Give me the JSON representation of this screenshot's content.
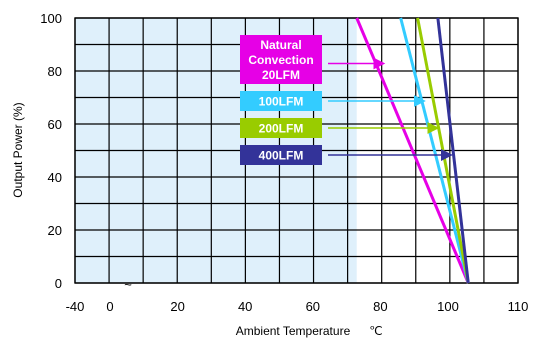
{
  "chart_data": {
    "type": "line",
    "xlabel": "Ambient Temperature",
    "xunit": "℃",
    "ylabel": "Output Power (%)",
    "x_ticks": [
      -40,
      0,
      20,
      40,
      60,
      80,
      100,
      110
    ],
    "y_ticks": [
      0,
      20,
      40,
      60,
      80,
      100
    ],
    "xlim": [
      -40,
      110
    ],
    "ylim": [
      0,
      100
    ],
    "axis_break_symbol": "~",
    "grid": true,
    "shaded_region": {
      "x": [
        -40,
        73
      ],
      "color": "#dff0fb"
    },
    "series": [
      {
        "name": "Natural Convection 20LFM",
        "color": "#e600e6",
        "points": [
          [
            73,
            100
          ],
          [
            106,
            0
          ]
        ],
        "arrow_target": [
          81,
          83
        ]
      },
      {
        "name": "100LFM",
        "color": "#33ccff",
        "points": [
          [
            86,
            100
          ],
          [
            106,
            0
          ]
        ],
        "arrow_target": [
          93,
          69
        ]
      },
      {
        "name": "200LFM",
        "color": "#99cc00",
        "points": [
          [
            91,
            100
          ],
          [
            106,
            0
          ]
        ],
        "arrow_target": [
          97,
          59
        ]
      },
      {
        "name": "400LFM",
        "color": "#333399",
        "points": [
          [
            97,
            100
          ],
          [
            106,
            0
          ]
        ],
        "arrow_target": [
          101,
          49
        ]
      }
    ],
    "legend": [
      {
        "lines": [
          "Natural",
          "Convection",
          "20LFM"
        ],
        "bg": "#e600e6"
      },
      {
        "lines": [
          "100LFM"
        ],
        "bg": "#33ccff"
      },
      {
        "lines": [
          "200LFM"
        ],
        "bg": "#99cc00"
      },
      {
        "lines": [
          "400LFM"
        ],
        "bg": "#333399"
      }
    ]
  }
}
